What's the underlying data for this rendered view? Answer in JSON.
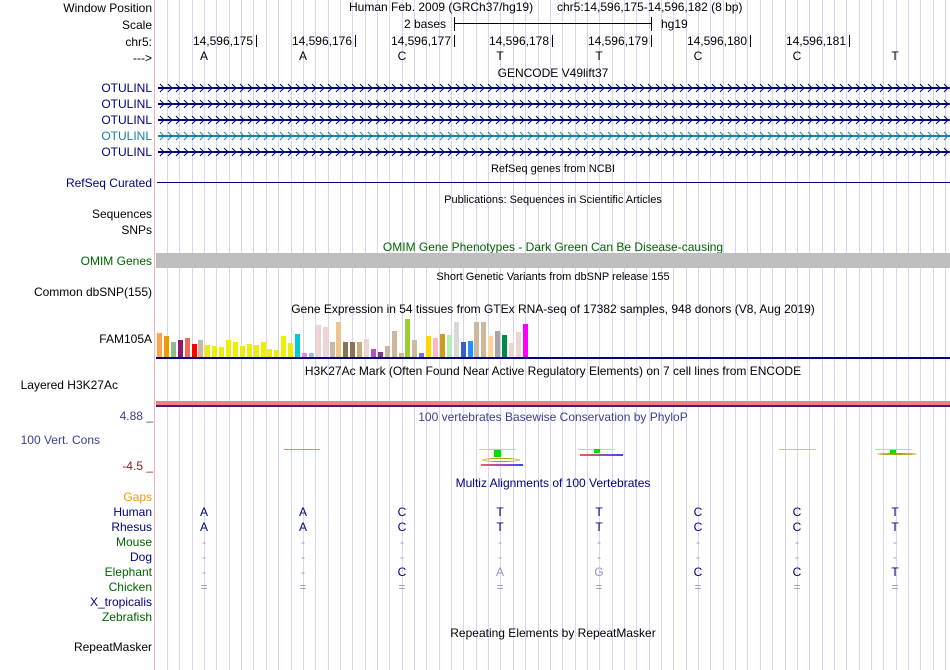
{
  "header": {
    "window_position_label": "Window Position",
    "scale_label": "Scale",
    "chrom_label": "chr5:",
    "strand_label": "--->",
    "assembly": "Human Feb. 2009 (GRCh37/hg19)",
    "position": "chr5:14,596,175-14,596,182 (8 bp)",
    "scale_text": "2 bases",
    "scale_db": "hg19",
    "coords": [
      "14,596,175",
      "14,596,176",
      "14,596,177",
      "14,596,178",
      "14,596,179",
      "14,596,180",
      "14,596,181"
    ],
    "bases": [
      "A",
      "A",
      "C",
      "T",
      "T",
      "C",
      "C",
      "T"
    ]
  },
  "tracks": {
    "gencode": {
      "title": "GENCODE V49lift37",
      "items": [
        {
          "label": "OTULINL",
          "color": "#000080"
        },
        {
          "label": "OTULINL",
          "color": "#000080"
        },
        {
          "label": "OTULINL",
          "color": "#000080"
        },
        {
          "label": "OTULINL",
          "color": "#1a7ea8"
        },
        {
          "label": "OTULINL",
          "color": "#000080"
        }
      ]
    },
    "refseq": {
      "title": "RefSeq genes from NCBI",
      "label": "RefSeq Curated"
    },
    "publications": {
      "title": "Publications: Sequences in Scientific Articles",
      "label1": "Sequences",
      "label2": "SNPs"
    },
    "omim": {
      "title": "OMIM Gene Phenotypes - Dark Green Can Be Disease-causing",
      "label": "OMIM Genes"
    },
    "dbsnp": {
      "title": "Short Genetic Variants from dbSNP release 155",
      "label": "Common dbSNP(155)"
    },
    "gtex": {
      "title": "Gene Expression in 54 tissues from GTEx RNA-seq of 17382 samples, 948 donors (V8, Aug 2019)",
      "label": "FAM105A",
      "bars": [
        {
          "v": 0.62,
          "c": "#ffa54f"
        },
        {
          "v": 0.55,
          "c": "#ee9a00"
        },
        {
          "v": 0.4,
          "c": "#8fbc8f"
        },
        {
          "v": 0.45,
          "c": "#8b1c62"
        },
        {
          "v": 0.5,
          "c": "#ee6a50"
        },
        {
          "v": 0.35,
          "c": "#ff0000"
        },
        {
          "v": 0.45,
          "c": "#cdb79e"
        },
        {
          "v": 0.32,
          "c": "#eeee00"
        },
        {
          "v": 0.28,
          "c": "#eeee00"
        },
        {
          "v": 0.25,
          "c": "#eeee00"
        },
        {
          "v": 0.45,
          "c": "#eeee00"
        },
        {
          "v": 0.4,
          "c": "#eeee00"
        },
        {
          "v": 0.28,
          "c": "#eeee00"
        },
        {
          "v": 0.34,
          "c": "#eeee00"
        },
        {
          "v": 0.32,
          "c": "#eeee00"
        },
        {
          "v": 0.4,
          "c": "#eeee00"
        },
        {
          "v": 0.22,
          "c": "#eeee00"
        },
        {
          "v": 0.18,
          "c": "#eeee00"
        },
        {
          "v": 0.55,
          "c": "#eeee00"
        },
        {
          "v": 0.38,
          "c": "#eeee00"
        },
        {
          "v": 0.6,
          "c": "#00cdcd"
        },
        {
          "v": 0.1,
          "c": "#ee82ee"
        },
        {
          "v": 0.1,
          "c": "#9ac0cd"
        },
        {
          "v": 0.85,
          "c": "#eed5d2"
        },
        {
          "v": 0.8,
          "c": "#eed5d2"
        },
        {
          "v": 0.4,
          "c": "#cdb79e"
        },
        {
          "v": 0.92,
          "c": "#eec591"
        },
        {
          "v": 0.4,
          "c": "#8b7355"
        },
        {
          "v": 0.4,
          "c": "#8b7355"
        },
        {
          "v": 0.4,
          "c": "#cdaa7d"
        },
        {
          "v": 0.48,
          "c": "#eed5d2"
        },
        {
          "v": 0.22,
          "c": "#b452cd"
        },
        {
          "v": 0.12,
          "c": "#7a378b"
        },
        {
          "v": 0.28,
          "c": "#cdb79e"
        },
        {
          "v": 0.68,
          "c": "#cdb79e"
        },
        {
          "v": 0.1,
          "c": "#cdb79e"
        },
        {
          "v": 1.0,
          "c": "#9acd32"
        },
        {
          "v": 0.45,
          "c": "#cdb79e"
        },
        {
          "v": 0.1,
          "c": "#7b68ee"
        },
        {
          "v": 0.55,
          "c": "#ffd700"
        },
        {
          "v": 0.5,
          "c": "#ffb6c1"
        },
        {
          "v": 0.6,
          "c": "#cd9b1d"
        },
        {
          "v": 0.58,
          "c": "#b4eeb4"
        },
        {
          "v": 0.92,
          "c": "#d9d9d9"
        },
        {
          "v": 0.4,
          "c": "#3a5fcd"
        },
        {
          "v": 0.42,
          "c": "#1e90ff"
        },
        {
          "v": 0.92,
          "c": "#cdb79e"
        },
        {
          "v": 0.92,
          "c": "#cdb79e"
        },
        {
          "v": 0.55,
          "c": "#ffd39b"
        },
        {
          "v": 0.68,
          "c": "#a6a6a6"
        },
        {
          "v": 0.58,
          "c": "#008b45"
        },
        {
          "v": 0.38,
          "c": "#eed5d2"
        },
        {
          "v": 0.65,
          "c": "#eed5d2"
        },
        {
          "v": 0.88,
          "c": "#ff00ff"
        }
      ]
    },
    "h3k27ac": {
      "title": "H3K27Ac Mark (Often Found Near Active Regulatory Elements) on 7 cell lines from ENCODE",
      "label": "Layered H3K27Ac"
    },
    "phylop": {
      "title": "100 vertebrates Basewise Conservation by PhyloP",
      "label": "100 Vert. Cons",
      "max": "4.88 _",
      "min": "-4.5 _"
    },
    "multiz": {
      "title": "Multiz Alignments of 100 Vertebrates",
      "rows": [
        {
          "label": "Gaps",
          "color": "#ee9a00",
          "seq": [
            "",
            "",
            "",
            "",
            "",
            "",
            "",
            ""
          ]
        },
        {
          "label": "Human",
          "color": "#000080",
          "seq": [
            "A",
            "A",
            "C",
            "T",
            "T",
            "C",
            "C",
            "T"
          ]
        },
        {
          "label": "Rhesus",
          "color": "#000080",
          "seq": [
            "A",
            "A",
            "C",
            "T",
            "T",
            "C",
            "C",
            "T"
          ]
        },
        {
          "label": "Mouse",
          "color": "#006400",
          "seq": [
            "-",
            "-",
            "-",
            "-",
            "-",
            "-",
            "-",
            "-"
          ]
        },
        {
          "label": "Dog",
          "color": "#000080",
          "seq": [
            "-",
            "-",
            "-",
            "-",
            "-",
            "-",
            "-",
            "-"
          ]
        },
        {
          "label": "Elephant",
          "color": "#006400",
          "seq": [
            "-",
            "-",
            "C",
            "A",
            "G",
            "C",
            "C",
            "T"
          ]
        },
        {
          "label": "Chicken",
          "color": "#006400",
          "seq": [
            "=",
            "=",
            "=",
            "=",
            "=",
            "=",
            "=",
            "="
          ]
        },
        {
          "label": "X_tropicalis",
          "color": "#000080",
          "seq": [
            "",
            "",
            "",
            "",
            "",
            "",
            "",
            ""
          ]
        },
        {
          "label": "Zebrafish",
          "color": "#006400",
          "seq": [
            "",
            "",
            "",
            "",
            "",
            "",
            "",
            ""
          ]
        }
      ]
    },
    "repeatmasker": {
      "title": "Repeating Elements by RepeatMasker",
      "label": "RepeatMasker"
    }
  }
}
